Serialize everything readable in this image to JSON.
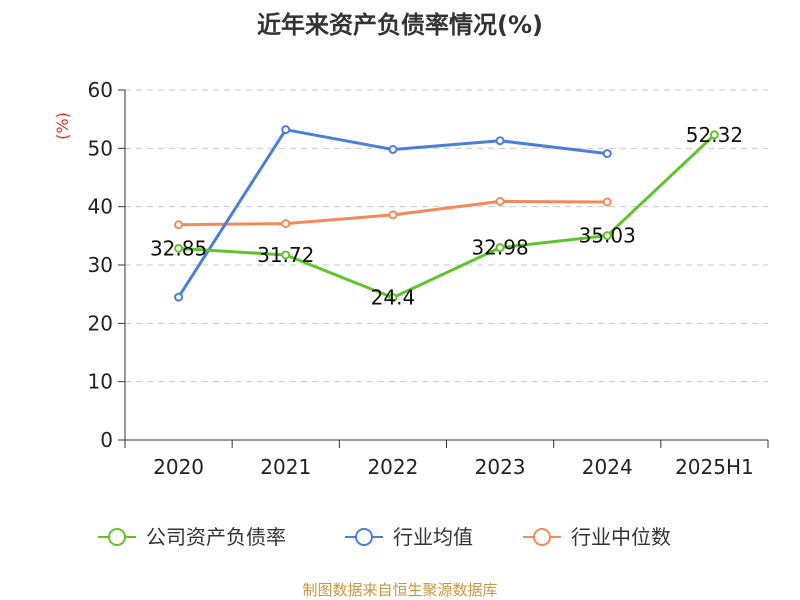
{
  "chart_data": {
    "type": "line",
    "title": "近年来资产负债率情况(%)",
    "ylabel": "(%)",
    "xlabel": "",
    "categories": [
      "2020",
      "2021",
      "2022",
      "2023",
      "2024",
      "2025H1"
    ],
    "ylim": [
      0,
      60
    ],
    "yticks": [
      0,
      10,
      20,
      30,
      40,
      50,
      60
    ],
    "grid": true,
    "legend_position": "bottom",
    "series": [
      {
        "name": "公司资产负债率",
        "color": "#5ec42a",
        "values": [
          32.85,
          31.72,
          24.4,
          32.98,
          35.03,
          52.32
        ],
        "labels": [
          "32.85",
          "31.72",
          "24.4",
          "32.98",
          "35.03",
          "52.32"
        ]
      },
      {
        "name": "行业均值",
        "color": "#4a7fd8",
        "values": [
          24.5,
          53.2,
          49.8,
          51.3,
          49.1,
          null
        ]
      },
      {
        "name": "行业中位数",
        "color": "#f4895a",
        "values": [
          36.9,
          37.1,
          38.6,
          40.9,
          40.8,
          null
        ]
      }
    ]
  },
  "source_note": "制图数据来自恒生聚源数据库"
}
